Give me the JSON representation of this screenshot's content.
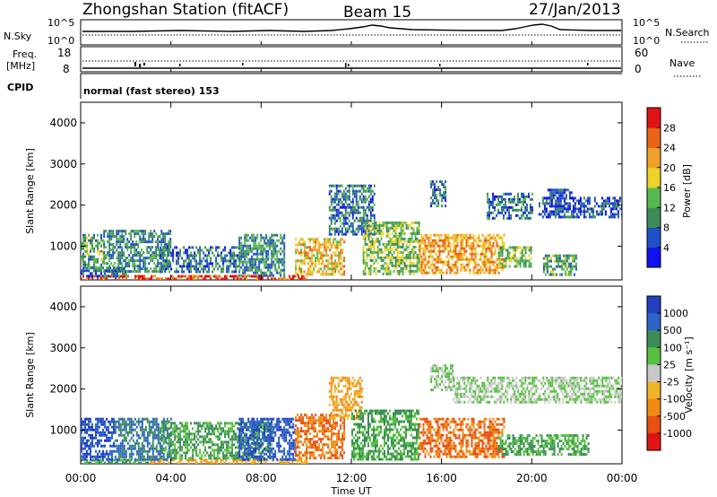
{
  "header": {
    "station": "Zhongshan Station (fitACF)",
    "beam": "Beam 15",
    "date": "27/Jan/2013"
  },
  "sky_panel": {
    "left_label": "N.Sky",
    "right_label": "N.Search",
    "left_ticks": [
      "10^5",
      "10^0"
    ],
    "right_ticks": [
      "10^5",
      "10^0"
    ]
  },
  "freq_panel": {
    "left_label_1": "Freq.",
    "left_label_2": "[MHz]",
    "right_label": "Nave",
    "left_ticks": [
      "18",
      "8"
    ],
    "right_ticks": [
      "60",
      "0"
    ]
  },
  "cpid_panel": {
    "label": "CPID",
    "text": "normal (fast stereo) 153"
  },
  "x_axis": {
    "label": "Time UT",
    "ticks": [
      "00:00",
      "04:00",
      "08:00",
      "12:00",
      "16:00",
      "20:00",
      "00:00"
    ]
  },
  "power_panel": {
    "ylabel": "Slant Range [km]",
    "yticks": [
      "1000",
      "2000",
      "3000",
      "4000"
    ],
    "colorbar_label": "Power [dB]",
    "colorbar_ticks": [
      "4",
      "8",
      "12",
      "16",
      "20",
      "24",
      "28"
    ],
    "colorbar_colors": [
      "#1010f0",
      "#2050c8",
      "#3c8c5a",
      "#58b850",
      "#ecd22a",
      "#f0a028",
      "#e86418",
      "#e01414"
    ]
  },
  "velocity_panel": {
    "ylabel": "Slant Range [km]",
    "yticks": [
      "1000",
      "2000",
      "3000",
      "4000"
    ],
    "colorbar_label": "Velocity [m s⁻¹]",
    "colorbar_ticks": [
      "1000",
      "500",
      "100",
      "25",
      "-25",
      "-100",
      "-500",
      "-1000"
    ],
    "colorbar_colors": [
      "#2040c0",
      "#2c64c8",
      "#3c8c5a",
      "#58c040",
      "#c8c8c8",
      "#f0b428",
      "#f08c14",
      "#e85014",
      "#e01414"
    ]
  },
  "chart_data": [
    {
      "type": "heatmap",
      "title": "Power [dB]",
      "xlabel": "Time UT",
      "ylabel": "Slant Range [km]",
      "xlim": [
        "00:00",
        "24:00"
      ],
      "ylim": [
        180,
        4500
      ],
      "colorbar_range": [
        0,
        30
      ],
      "regions": [
        {
          "t": [
            0.0,
            10.0
          ],
          "range": [
            200,
            300
          ],
          "value": 28
        },
        {
          "t": [
            0.0,
            2.0
          ],
          "range": [
            300,
            500
          ],
          "value": 8
        },
        {
          "t": [
            0.0,
            1.0
          ],
          "range": [
            500,
            1300
          ],
          "value": 12
        },
        {
          "t": [
            1.0,
            4.0
          ],
          "range": [
            400,
            1400
          ],
          "value": 10
        },
        {
          "t": [
            3.5,
            7.0
          ],
          "range": [
            400,
            1000
          ],
          "value": 8
        },
        {
          "t": [
            7.0,
            9.0
          ],
          "range": [
            300,
            1300
          ],
          "value": 10
        },
        {
          "t": [
            9.5,
            11.7
          ],
          "range": [
            300,
            1200
          ],
          "value": 20
        },
        {
          "t": [
            11.0,
            13.0
          ],
          "range": [
            1300,
            2500
          ],
          "value": 8
        },
        {
          "t": [
            12.5,
            15.0
          ],
          "range": [
            350,
            1600
          ],
          "value": 14
        },
        {
          "t": [
            15.0,
            18.8
          ],
          "range": [
            350,
            1300
          ],
          "value": 22
        },
        {
          "t": [
            18.5,
            20.0
          ],
          "range": [
            500,
            1000
          ],
          "value": 14
        },
        {
          "t": [
            20.5,
            22.0
          ],
          "range": [
            300,
            800
          ],
          "value": 12
        },
        {
          "t": [
            15.5,
            16.2
          ],
          "range": [
            2000,
            2600
          ],
          "value": 8
        },
        {
          "t": [
            18.0,
            20.0
          ],
          "range": [
            1700,
            2300
          ],
          "value": 8
        },
        {
          "t": [
            20.3,
            24.0
          ],
          "range": [
            1700,
            2200
          ],
          "value": 6
        },
        {
          "t": [
            20.7,
            21.8
          ],
          "range": [
            2200,
            2400
          ],
          "value": 6
        }
      ]
    },
    {
      "type": "heatmap",
      "title": "Velocity [m s⁻¹]",
      "xlabel": "Time UT",
      "ylabel": "Slant Range [km]",
      "xlim": [
        "00:00",
        "24:00"
      ],
      "ylim": [
        180,
        4500
      ],
      "colorbar_range": [
        -1000,
        1000
      ],
      "regions": [
        {
          "t": [
            0.0,
            3.0
          ],
          "range": [
            200,
            300
          ],
          "value": 100
        },
        {
          "t": [
            3.0,
            10.0
          ],
          "range": [
            200,
            300
          ],
          "value": -100
        },
        {
          "t": [
            0.0,
            1.5
          ],
          "range": [
            300,
            1300
          ],
          "value": 1000
        },
        {
          "t": [
            1.5,
            4.0
          ],
          "range": [
            300,
            1300
          ],
          "value": 500
        },
        {
          "t": [
            3.5,
            8.5
          ],
          "range": [
            300,
            1200
          ],
          "value": 100
        },
        {
          "t": [
            7.0,
            9.5
          ],
          "range": [
            300,
            1300
          ],
          "value": 1000
        },
        {
          "t": [
            9.5,
            11.7
          ],
          "range": [
            300,
            1400
          ],
          "value": -500
        },
        {
          "t": [
            11.0,
            12.5
          ],
          "range": [
            1300,
            2300
          ],
          "value": -100
        },
        {
          "t": [
            12.0,
            15.0
          ],
          "range": [
            300,
            1500
          ],
          "value": 100
        },
        {
          "t": [
            15.0,
            18.8
          ],
          "range": [
            350,
            1300
          ],
          "value": -500
        },
        {
          "t": [
            18.5,
            22.5
          ],
          "range": [
            400,
            900
          ],
          "value": 100
        },
        {
          "t": [
            15.5,
            16.5
          ],
          "range": [
            2000,
            2600
          ],
          "value": 25
        },
        {
          "t": [
            16.5,
            24.0
          ],
          "range": [
            1700,
            2300
          ],
          "value": 25
        }
      ]
    }
  ]
}
